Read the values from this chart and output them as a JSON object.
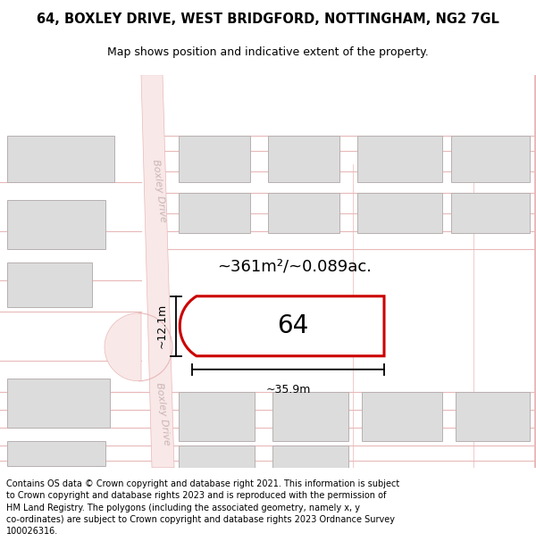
{
  "title": "64, BOXLEY DRIVE, WEST BRIDGFORD, NOTTINGHAM, NG2 7GL",
  "subtitle": "Map shows position and indicative extent of the property.",
  "footer": "Contains OS data © Crown copyright and database right 2021. This information is subject\nto Crown copyright and database rights 2023 and is reproduced with the permission of\nHM Land Registry. The polygons (including the associated geometry, namely x, y\nco-ordinates) are subject to Crown copyright and database rights 2023 Ordnance Survey\n100026316.",
  "map_bg": "#ffffff",
  "road_fill": "#f9e8e8",
  "road_line": "#e8b8b8",
  "bld_fill": "#dcdcdc",
  "bld_edge": "#b8b0b0",
  "prop_edge": "#cc0000",
  "prop_fill": "#ffffff",
  "road_label": "#c8b4b4",
  "area_text": "~361m²/~0.089ac.",
  "width_text": "~35.9m",
  "height_text": "~12.1m",
  "prop_num": "64",
  "road_name": "Boxley Drive",
  "title_fontsize": 10.5,
  "subtitle_fontsize": 9,
  "footer_fontsize": 7.0
}
